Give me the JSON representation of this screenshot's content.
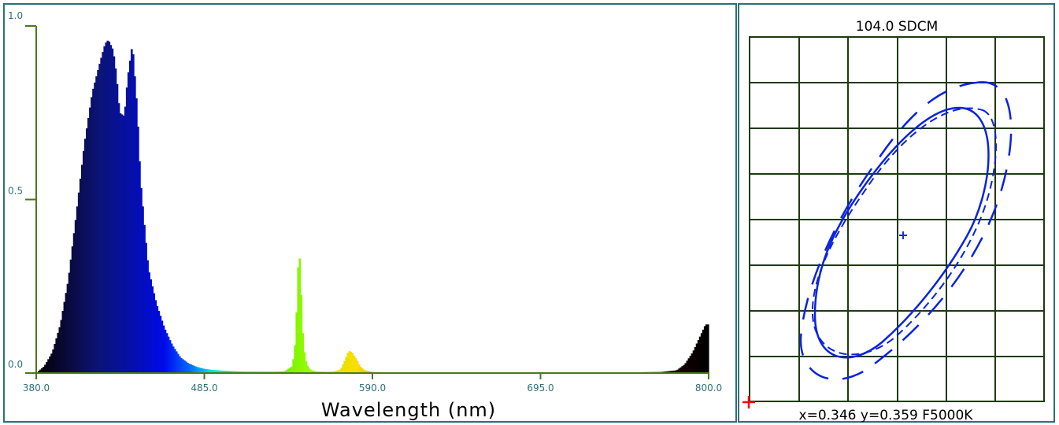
{
  "chart_data": [
    {
      "type": "area",
      "title": "",
      "xlabel": "Wavelength (nm)",
      "ylabel": "",
      "xlim": [
        380,
        800
      ],
      "ylim": [
        0,
        1
      ],
      "x_ticks": [
        "380.0",
        "485.0",
        "590.0",
        "695.0",
        "800.0"
      ],
      "y_ticks": [
        "0.0",
        "0.5",
        "1.0"
      ],
      "grid": false,
      "fill": "wavelength-spectrum colors",
      "series": [
        {
          "x": [
            380,
            385,
            390,
            395,
            400,
            405,
            410,
            415,
            420,
            423,
            425,
            428,
            430,
            432,
            435,
            437,
            440,
            443,
            445,
            448,
            450,
            455,
            460,
            465,
            470,
            475,
            480,
            485,
            490,
            500,
            510,
            520,
            530,
            535,
            540,
            542,
            543,
            544,
            545,
            546,
            547,
            548,
            550,
            552,
            555,
            560,
            565,
            570,
            573,
            575,
            577,
            580,
            582,
            585,
            590,
            600,
            650,
            700,
            750,
            770,
            780,
            785,
            790,
            793,
            796,
            798,
            800
          ],
          "y": [
            0.0,
            0.02,
            0.06,
            0.14,
            0.27,
            0.46,
            0.66,
            0.81,
            0.9,
            0.95,
            0.96,
            0.93,
            0.86,
            0.75,
            0.74,
            0.85,
            0.95,
            0.76,
            0.56,
            0.4,
            0.3,
            0.2,
            0.13,
            0.08,
            0.045,
            0.028,
            0.018,
            0.012,
            0.009,
            0.006,
            0.004,
            0.004,
            0.004,
            0.005,
            0.02,
            0.1,
            0.25,
            0.36,
            0.3,
            0.15,
            0.08,
            0.04,
            0.015,
            0.008,
            0.005,
            0.004,
            0.004,
            0.01,
            0.04,
            0.065,
            0.06,
            0.04,
            0.02,
            0.008,
            0.003,
            0.002,
            0.002,
            0.002,
            0.002,
            0.003,
            0.008,
            0.025,
            0.06,
            0.09,
            0.12,
            0.14,
            0.14
          ]
        }
      ]
    },
    {
      "type": "scatter",
      "title": "104.0 SDCM",
      "grid": true,
      "series": [
        {
          "name": "",
          "values": [
            [
              0.346,
              0.359
            ]
          ]
        }
      ],
      "readout": "x=0.346 y=0.359 F5000K"
    }
  ],
  "colors": {
    "border": "#2e6f7a",
    "axis": "#4a7a1a",
    "grid": "#1e3a0e",
    "ellipse": "#0a22e0",
    "marker": "#1e2cd8",
    "origin_marker": "#ff0000"
  }
}
